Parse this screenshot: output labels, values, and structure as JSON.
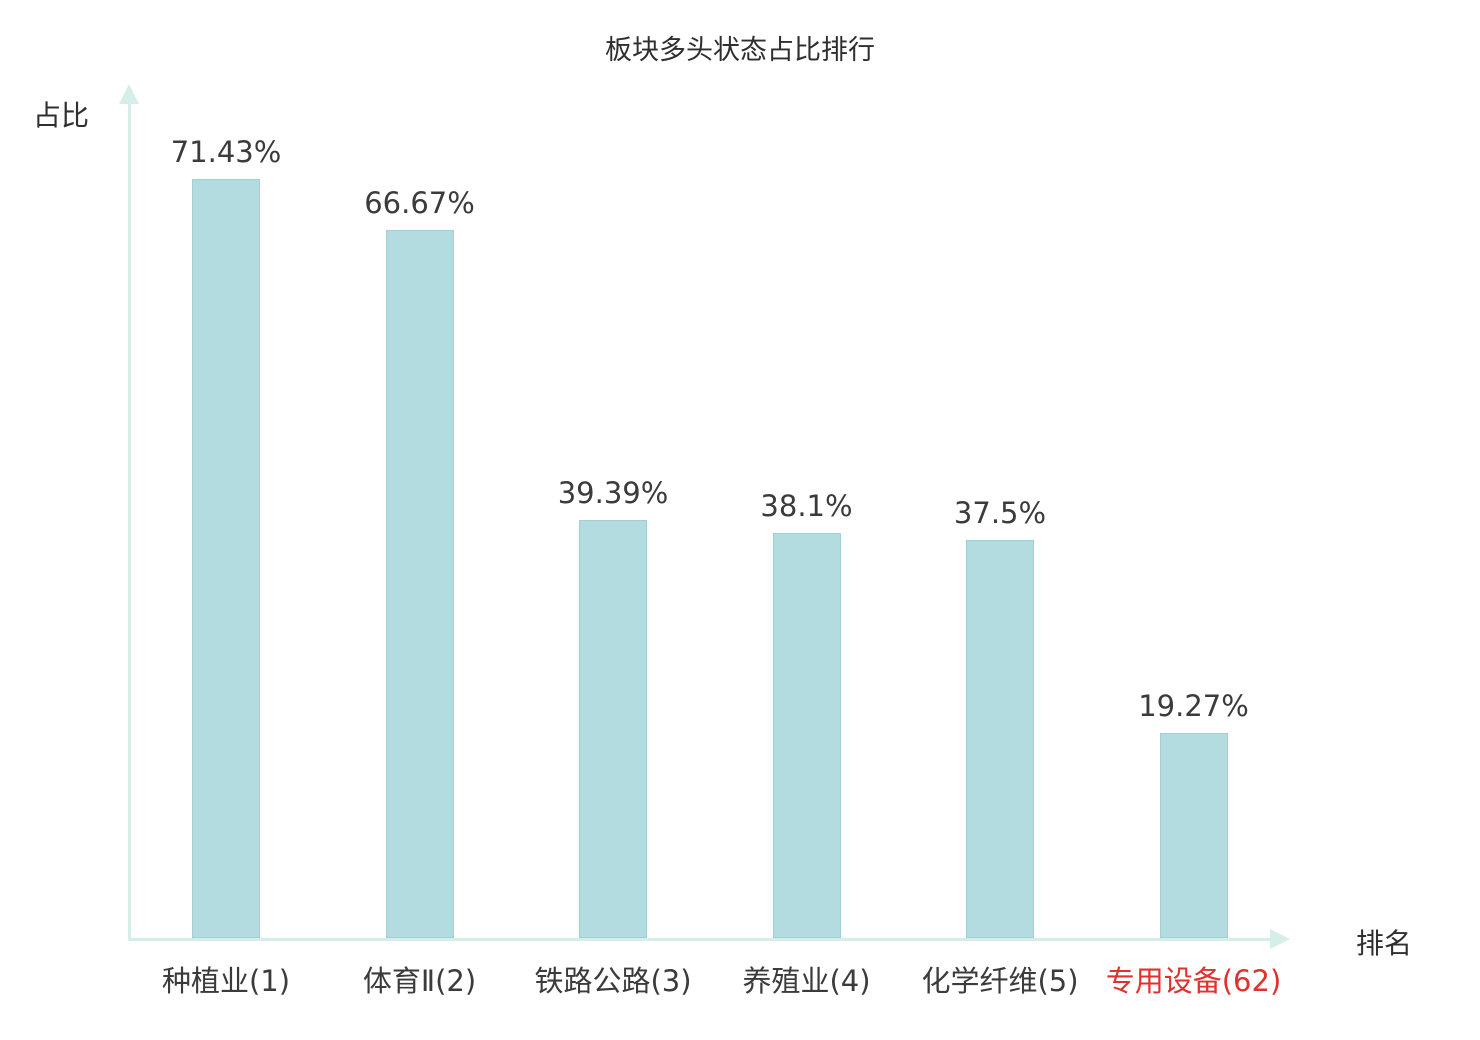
{
  "chart_data": {
    "type": "bar",
    "title": "板块多头状态占比排行",
    "xlabel": "排名",
    "ylabel": "占比",
    "categories": [
      "种植业(1)",
      "体育Ⅱ(2)",
      "铁路公路(3)",
      "养殖业(4)",
      "化学纤维(5)",
      "专用设备(62)"
    ],
    "values": [
      71.43,
      66.67,
      39.39,
      38.1,
      37.5,
      19.27
    ],
    "value_labels": [
      "71.43%",
      "66.67%",
      "39.39%",
      "38.1%",
      "37.5%",
      "19.27%"
    ],
    "highlight_index": 5,
    "ylim": [
      0,
      80
    ],
    "grid": false,
    "legend": "none",
    "colors": {
      "bar_fill": "#b3dce1",
      "bar_edge": "#a3ced4",
      "axis": "#d6eeea",
      "text": "#3b3b3b",
      "highlight_text": "#e0312e"
    }
  }
}
